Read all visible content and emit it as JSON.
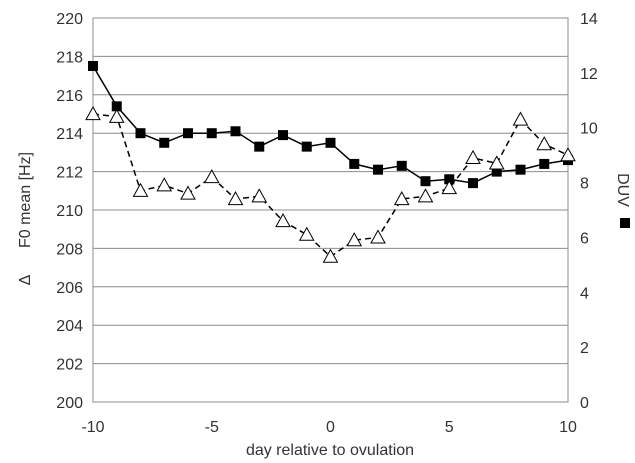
{
  "chart_data": {
    "type": "line",
    "xlabel": "day relative to ovulation",
    "ylabel": "F0 mean [Hz]",
    "ylabel_prefix": "Δ",
    "y2label": "DUV",
    "xlim": [
      -10,
      10
    ],
    "ylim": [
      200,
      220
    ],
    "y2lim": [
      0,
      14
    ],
    "x_ticks": [
      "-10",
      "-5",
      "0",
      "5",
      "10"
    ],
    "y_ticks": [
      "200",
      "202",
      "204",
      "206",
      "208",
      "210",
      "212",
      "214",
      "216",
      "218",
      "220"
    ],
    "y2_ticks": [
      "0",
      "2",
      "4",
      "6",
      "8",
      "10",
      "12",
      "14"
    ],
    "grid": true,
    "series": [
      {
        "axis": "left",
        "marker": "filled-square",
        "line": "solid",
        "color": "#000000",
        "x": [
          -10,
          -9,
          -8,
          -7,
          -6,
          -5,
          -4,
          -3,
          -2,
          -1,
          0,
          1,
          2,
          3,
          4,
          5,
          6,
          7,
          8,
          9,
          10
        ],
        "values": [
          217.5,
          215.4,
          214.0,
          213.5,
          214.0,
          214.0,
          214.1,
          213.3,
          213.9,
          213.3,
          213.5,
          212.4,
          212.1,
          212.3,
          211.5,
          211.6,
          211.4,
          212.0,
          212.1,
          212.4,
          212.6
        ]
      },
      {
        "axis": "right",
        "marker": "open-triangle",
        "line": "dashed",
        "color": "#000000",
        "x": [
          -10,
          -9,
          -8,
          -7,
          -6,
          -5,
          -4,
          -3,
          -2,
          -1,
          0,
          1,
          2,
          3,
          4,
          5,
          6,
          7,
          8,
          9,
          10
        ],
        "values": [
          10.5,
          10.4,
          7.7,
          7.9,
          7.6,
          8.2,
          7.4,
          7.5,
          6.6,
          6.1,
          5.3,
          5.9,
          6.0,
          7.4,
          7.5,
          7.8,
          8.9,
          8.7,
          10.3,
          9.4,
          9.0
        ]
      }
    ]
  }
}
